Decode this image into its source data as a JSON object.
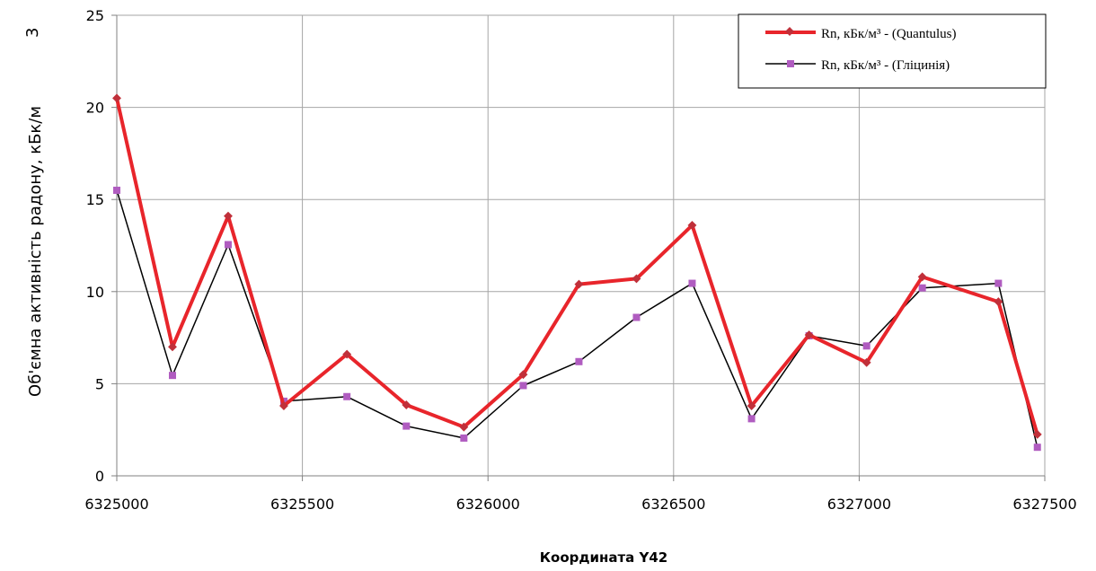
{
  "chart_data": {
    "type": "line",
    "xlabel": "Координата Y42",
    "ylabel": "Об'ємна активність радону, кБк/м",
    "ylabel_superscript": "3",
    "xlim": [
      6325000,
      6327500
    ],
    "ylim": [
      0,
      25
    ],
    "x_ticks": [
      6325000,
      6325500,
      6326000,
      6326500,
      6327000,
      6327500
    ],
    "y_ticks": [
      0,
      5,
      10,
      15,
      20,
      25
    ],
    "grid": true,
    "legend_position": "top-right",
    "series": [
      {
        "name": "Rn, кБк/м³ - (Quantulus)",
        "color": "#e8252b",
        "marker_color": "#c0303a",
        "points": [
          [
            6325000,
            20.5
          ],
          [
            6325150,
            7.0
          ],
          [
            6325300,
            14.1
          ],
          [
            6325450,
            3.8
          ],
          [
            6325620,
            6.6
          ],
          [
            6325780,
            3.85
          ],
          [
            6325935,
            2.65
          ],
          [
            6326095,
            5.5
          ],
          [
            6326245,
            10.4
          ],
          [
            6326400,
            10.7
          ],
          [
            6326550,
            13.6
          ],
          [
            6326710,
            3.8
          ],
          [
            6326865,
            7.65
          ],
          [
            6327020,
            6.15
          ],
          [
            6327170,
            10.8
          ],
          [
            6327375,
            9.45
          ],
          [
            6327480,
            2.25
          ]
        ]
      },
      {
        "name": "Rn, кБк/м³ - (Гліцинія)",
        "color": "#000000",
        "marker_color": "#b05cc0",
        "points": [
          [
            6325000,
            15.5
          ],
          [
            6325150,
            5.45
          ],
          [
            6325300,
            12.55
          ],
          [
            6325450,
            4.05
          ],
          [
            6325620,
            4.3
          ],
          [
            6325780,
            2.7
          ],
          [
            6325935,
            2.05
          ],
          [
            6326095,
            4.9
          ],
          [
            6326245,
            6.2
          ],
          [
            6326400,
            8.6
          ],
          [
            6326550,
            10.45
          ],
          [
            6326710,
            3.1
          ],
          [
            6326865,
            7.6
          ],
          [
            6327020,
            7.05
          ],
          [
            6327170,
            10.2
          ],
          [
            6327375,
            10.45
          ],
          [
            6327480,
            1.55
          ]
        ]
      }
    ]
  }
}
